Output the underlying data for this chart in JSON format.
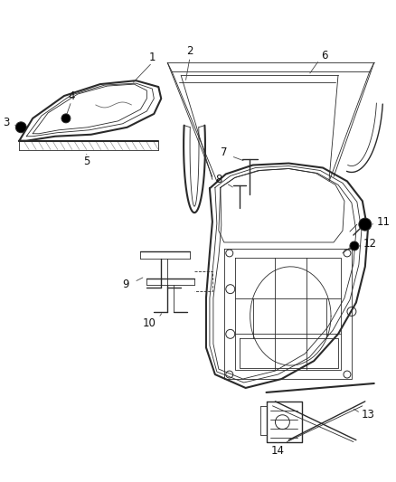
{
  "background_color": "#ffffff",
  "fig_width": 4.38,
  "fig_height": 5.33,
  "dpi": 100,
  "line_color": "#2a2a2a",
  "label_fontsize": 8.5
}
